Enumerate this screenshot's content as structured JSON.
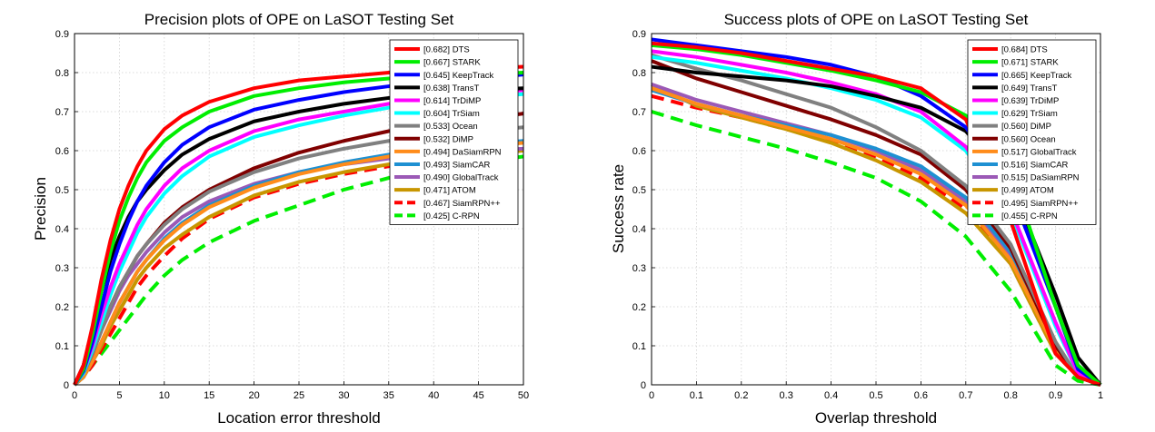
{
  "chart_data": [
    {
      "type": "line",
      "title": "Precision plots of OPE on LaSOT Testing Set",
      "xlabel": "Location error threshold",
      "ylabel": "Precision",
      "xlim": [
        0,
        50
      ],
      "ylim": [
        0,
        0.9
      ],
      "xticks": [
        "0",
        "5",
        "10",
        "15",
        "20",
        "25",
        "30",
        "35",
        "40",
        "45",
        "50"
      ],
      "yticks": [
        "0",
        "0.1",
        "0.2",
        "0.3",
        "0.4",
        "0.5",
        "0.6",
        "0.7",
        "0.8",
        "0.9"
      ],
      "grid": true,
      "legend_position": "top-right",
      "x": [
        0,
        1,
        2,
        3,
        4,
        5,
        6,
        7,
        8,
        10,
        12,
        15,
        20,
        25,
        30,
        35,
        40,
        45,
        50
      ],
      "series": [
        {
          "name": "[0.682] DTS",
          "color": "#ff0000",
          "dash": "solid",
          "values": [
            0,
            0.05,
            0.15,
            0.27,
            0.37,
            0.45,
            0.51,
            0.56,
            0.6,
            0.655,
            0.69,
            0.725,
            0.76,
            0.78,
            0.79,
            0.8,
            0.805,
            0.81,
            0.815
          ]
        },
        {
          "name": "[0.667] STARK",
          "color": "#00ee00",
          "dash": "solid",
          "values": [
            0,
            0.04,
            0.13,
            0.24,
            0.34,
            0.42,
            0.48,
            0.53,
            0.57,
            0.625,
            0.66,
            0.7,
            0.74,
            0.76,
            0.775,
            0.785,
            0.79,
            0.795,
            0.8
          ]
        },
        {
          "name": "[0.645] KeepTrack",
          "color": "#0000ff",
          "dash": "solid",
          "values": [
            0,
            0.035,
            0.11,
            0.2,
            0.29,
            0.36,
            0.42,
            0.47,
            0.51,
            0.57,
            0.615,
            0.66,
            0.705,
            0.73,
            0.75,
            0.765,
            0.775,
            0.785,
            0.795
          ]
        },
        {
          "name": "[0.638] TransT",
          "color": "#000000",
          "dash": "solid",
          "values": [
            0,
            0.05,
            0.14,
            0.24,
            0.32,
            0.38,
            0.43,
            0.47,
            0.5,
            0.55,
            0.59,
            0.63,
            0.675,
            0.7,
            0.72,
            0.735,
            0.745,
            0.755,
            0.76
          ]
        },
        {
          "name": "[0.614] TrDiMP",
          "color": "#ff00ff",
          "dash": "solid",
          "values": [
            0,
            0.035,
            0.1,
            0.18,
            0.25,
            0.31,
            0.36,
            0.41,
            0.45,
            0.51,
            0.555,
            0.6,
            0.65,
            0.68,
            0.7,
            0.72,
            0.735,
            0.745,
            0.755
          ]
        },
        {
          "name": "[0.604] TrSiam",
          "color": "#00ffff",
          "dash": "solid",
          "values": [
            0,
            0.03,
            0.09,
            0.16,
            0.23,
            0.29,
            0.34,
            0.39,
            0.43,
            0.49,
            0.535,
            0.585,
            0.635,
            0.665,
            0.69,
            0.71,
            0.725,
            0.735,
            0.745
          ]
        },
        {
          "name": "[0.533] Ocean",
          "color": "#808080",
          "dash": "solid",
          "values": [
            0,
            0.03,
            0.08,
            0.14,
            0.2,
            0.25,
            0.29,
            0.33,
            0.36,
            0.41,
            0.45,
            0.495,
            0.545,
            0.58,
            0.605,
            0.625,
            0.64,
            0.65,
            0.66
          ]
        },
        {
          "name": "[0.532] DiMP",
          "color": "#800000",
          "dash": "solid",
          "values": [
            0,
            0.03,
            0.08,
            0.14,
            0.2,
            0.25,
            0.29,
            0.33,
            0.36,
            0.415,
            0.455,
            0.5,
            0.555,
            0.595,
            0.625,
            0.65,
            0.665,
            0.68,
            0.695
          ]
        },
        {
          "name": "[0.494] DaSiamRPN",
          "color": "#ff8c1a",
          "dash": "solid",
          "values": [
            0,
            0.02,
            0.06,
            0.11,
            0.16,
            0.21,
            0.25,
            0.29,
            0.32,
            0.37,
            0.41,
            0.455,
            0.505,
            0.54,
            0.565,
            0.585,
            0.6,
            0.61,
            0.62
          ]
        },
        {
          "name": "[0.493] SiamCAR",
          "color": "#1e90d2",
          "dash": "solid",
          "values": [
            0,
            0.02,
            0.06,
            0.11,
            0.16,
            0.21,
            0.25,
            0.29,
            0.32,
            0.375,
            0.415,
            0.46,
            0.51,
            0.545,
            0.57,
            0.59,
            0.605,
            0.615,
            0.625
          ]
        },
        {
          "name": "[0.490] GlobalTrack",
          "color": "#9b59b6",
          "dash": "solid",
          "values": [
            0,
            0.03,
            0.08,
            0.14,
            0.19,
            0.24,
            0.28,
            0.31,
            0.34,
            0.39,
            0.43,
            0.47,
            0.515,
            0.545,
            0.565,
            0.58,
            0.59,
            0.6,
            0.605
          ]
        },
        {
          "name": "[0.471] ATOM",
          "color": "#c89600",
          "dash": "solid",
          "values": [
            0,
            0.02,
            0.06,
            0.1,
            0.15,
            0.19,
            0.23,
            0.27,
            0.3,
            0.35,
            0.385,
            0.43,
            0.485,
            0.52,
            0.545,
            0.565,
            0.58,
            0.59,
            0.6
          ]
        },
        {
          "name": "[0.467] SiamRPN++",
          "color": "#ff0000",
          "dash": "dashed",
          "values": [
            0,
            0.02,
            0.05,
            0.09,
            0.13,
            0.17,
            0.21,
            0.25,
            0.28,
            0.33,
            0.375,
            0.425,
            0.48,
            0.515,
            0.54,
            0.56,
            0.575,
            0.585,
            0.595
          ]
        },
        {
          "name": "[0.425] C-RPN",
          "color": "#00ee00",
          "dash": "dashed",
          "values": [
            0,
            0.02,
            0.05,
            0.08,
            0.11,
            0.14,
            0.17,
            0.2,
            0.23,
            0.28,
            0.32,
            0.365,
            0.42,
            0.46,
            0.5,
            0.53,
            0.55,
            0.57,
            0.585
          ]
        }
      ]
    },
    {
      "type": "line",
      "title": "Success plots of OPE on LaSOT Testing Set",
      "xlabel": "Overlap threshold",
      "ylabel": "Success rate",
      "xlim": [
        0,
        1
      ],
      "ylim": [
        0,
        0.9
      ],
      "xticks": [
        "0",
        "0.1",
        "0.2",
        "0.3",
        "0.4",
        "0.5",
        "0.6",
        "0.7",
        "0.8",
        "0.9",
        "1"
      ],
      "yticks": [
        "0",
        "0.1",
        "0.2",
        "0.3",
        "0.4",
        "0.5",
        "0.6",
        "0.7",
        "0.8",
        "0.9"
      ],
      "grid": true,
      "legend_position": "top-right",
      "x": [
        0,
        0.1,
        0.2,
        0.3,
        0.4,
        0.5,
        0.6,
        0.7,
        0.8,
        0.9,
        0.95,
        1.0
      ],
      "series": [
        {
          "name": "[0.684] DTS",
          "color": "#ff0000",
          "dash": "solid",
          "values": [
            0.875,
            0.865,
            0.85,
            0.83,
            0.81,
            0.79,
            0.76,
            0.68,
            0.42,
            0.08,
            0.02,
            0.0
          ]
        },
        {
          "name": "[0.671] STARK",
          "color": "#00ee00",
          "dash": "solid",
          "values": [
            0.87,
            0.86,
            0.845,
            0.825,
            0.805,
            0.78,
            0.75,
            0.69,
            0.55,
            0.2,
            0.05,
            0.0
          ]
        },
        {
          "name": "[0.665] KeepTrack",
          "color": "#0000ff",
          "dash": "solid",
          "values": [
            0.885,
            0.87,
            0.855,
            0.84,
            0.82,
            0.79,
            0.74,
            0.66,
            0.5,
            0.2,
            0.04,
            0.0
          ]
        },
        {
          "name": "[0.649] TransT",
          "color": "#000000",
          "dash": "solid",
          "values": [
            0.815,
            0.8,
            0.79,
            0.78,
            0.765,
            0.74,
            0.71,
            0.65,
            0.52,
            0.23,
            0.07,
            0.0
          ]
        },
        {
          "name": "[0.639] TrDiMP",
          "color": "#ff00ff",
          "dash": "solid",
          "values": [
            0.855,
            0.84,
            0.82,
            0.8,
            0.775,
            0.745,
            0.7,
            0.61,
            0.45,
            0.16,
            0.03,
            0.0
          ]
        },
        {
          "name": "[0.629] TrSiam",
          "color": "#00ffff",
          "dash": "solid",
          "values": [
            0.84,
            0.825,
            0.805,
            0.785,
            0.76,
            0.73,
            0.685,
            0.6,
            0.44,
            0.15,
            0.03,
            0.0
          ]
        },
        {
          "name": "[0.560] DiMP",
          "color": "#808080",
          "dash": "solid",
          "values": [
            0.845,
            0.81,
            0.78,
            0.745,
            0.71,
            0.66,
            0.6,
            0.51,
            0.36,
            0.11,
            0.02,
            0.0
          ]
        },
        {
          "name": "[0.560] Ocean",
          "color": "#800000",
          "dash": "solid",
          "values": [
            0.83,
            0.785,
            0.75,
            0.715,
            0.68,
            0.64,
            0.59,
            0.5,
            0.35,
            0.1,
            0.02,
            0.0
          ]
        },
        {
          "name": "[0.517] GlobalTrack",
          "color": "#ff8c1a",
          "dash": "solid",
          "values": [
            0.76,
            0.72,
            0.69,
            0.66,
            0.63,
            0.59,
            0.54,
            0.46,
            0.32,
            0.09,
            0.02,
            0.0
          ]
        },
        {
          "name": "[0.516] SiamCAR",
          "color": "#1e90d2",
          "dash": "solid",
          "values": [
            0.755,
            0.72,
            0.69,
            0.665,
            0.64,
            0.605,
            0.56,
            0.48,
            0.34,
            0.1,
            0.02,
            0.0
          ]
        },
        {
          "name": "[0.515] DaSiamRPN",
          "color": "#9b59b6",
          "dash": "solid",
          "values": [
            0.77,
            0.73,
            0.7,
            0.67,
            0.64,
            0.6,
            0.55,
            0.47,
            0.33,
            0.09,
            0.02,
            0.0
          ]
        },
        {
          "name": "[0.499] ATOM",
          "color": "#c89600",
          "dash": "solid",
          "values": [
            0.77,
            0.715,
            0.685,
            0.655,
            0.62,
            0.575,
            0.52,
            0.44,
            0.31,
            0.08,
            0.02,
            0.0
          ]
        },
        {
          "name": "[0.495] SiamRPN++",
          "color": "#ff0000",
          "dash": "dashed",
          "values": [
            0.74,
            0.71,
            0.685,
            0.655,
            0.625,
            0.585,
            0.53,
            0.45,
            0.31,
            0.08,
            0.02,
            0.0
          ]
        },
        {
          "name": "[0.455] C-RPN",
          "color": "#00ee00",
          "dash": "dashed",
          "values": [
            0.7,
            0.665,
            0.635,
            0.605,
            0.57,
            0.53,
            0.47,
            0.38,
            0.24,
            0.05,
            0.01,
            0.0
          ]
        }
      ]
    }
  ]
}
